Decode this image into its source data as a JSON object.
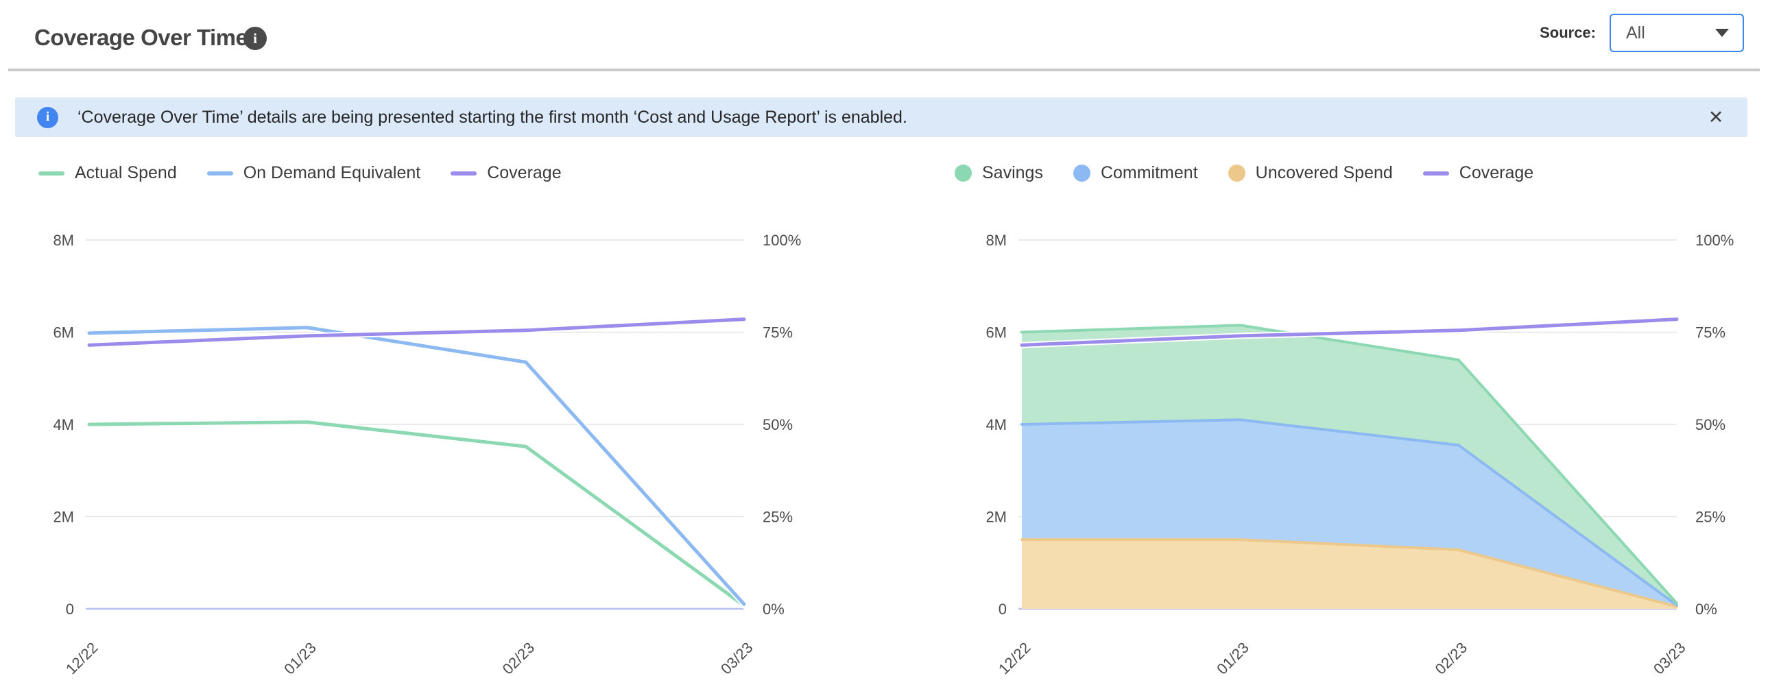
{
  "header": {
    "title": "Coverage Over Time",
    "info_icon": "i",
    "source_label": "Source:",
    "source_value": "All"
  },
  "banner": {
    "info_icon": "i",
    "text": "‘Coverage Over Time’ details are being presented starting the first month ‘Cost and Usage Report’ is enabled.",
    "close_icon": "✕"
  },
  "colors": {
    "accent_blue": "#3c86f0",
    "banner_bg": "#dce9f9",
    "banner_icon_blue": "#4186f0",
    "title_text": "#454545",
    "divider_gray": "#c9c9c9",
    "grid": "#e3e3e3",
    "baseline": "#b7c3ec",
    "axis_text": "#4d4d4d",
    "green_line": "#8cd8b2",
    "green_fill": "#bbe7ce",
    "blue_line": "#8cb9f2",
    "blue_fill": "#b1d2f7",
    "orange_line": "#ecc98a",
    "orange_fill": "#f5ddb0",
    "purple_line": "#9b8ceb"
  },
  "chart_data": [
    {
      "id": "spend-lines-chart",
      "type": "line",
      "title": "",
      "legend_position": "top",
      "grid": true,
      "x_label_rotation": -45,
      "categories": [
        "12/22",
        "01/23",
        "02/23",
        "03/23"
      ],
      "left_axis": {
        "label": "",
        "unit": "M",
        "max": 8,
        "ticks": [
          {
            "value": 8,
            "label": "8M"
          },
          {
            "value": 6,
            "label": "6M"
          },
          {
            "value": 4,
            "label": "4M"
          },
          {
            "value": 2,
            "label": "2M"
          },
          {
            "value": 0,
            "label": "0"
          }
        ]
      },
      "right_axis": {
        "label": "",
        "unit": "%",
        "max": 100,
        "ticks": [
          {
            "value": 100,
            "label": "100%"
          },
          {
            "value": 75,
            "label": "75%"
          },
          {
            "value": 50,
            "label": "50%"
          },
          {
            "value": 25,
            "label": "25%"
          },
          {
            "value": 0,
            "label": "0%"
          }
        ]
      },
      "series": [
        {
          "name": "Actual Spend",
          "role": "line",
          "axis": "left",
          "swatch": "line",
          "color": "#8cd8b2",
          "values": [
            4.0,
            4.05,
            3.52,
            0.07
          ]
        },
        {
          "name": "On Demand Equivalent",
          "role": "line",
          "axis": "left",
          "swatch": "line",
          "color": "#8cb9f2",
          "values": [
            5.98,
            6.1,
            5.35,
            0.1
          ]
        },
        {
          "name": "Coverage",
          "role": "line",
          "axis": "right",
          "swatch": "line",
          "color": "#9b8ceb",
          "values": [
            71.5,
            74,
            75.5,
            78.5
          ]
        }
      ]
    },
    {
      "id": "coverage-stack-chart",
      "type": "area-stacked",
      "title": "",
      "legend_position": "top",
      "grid": true,
      "x_label_rotation": -45,
      "categories": [
        "12/22",
        "01/23",
        "02/23",
        "03/23"
      ],
      "stack_bottom_to_top": [
        "Uncovered Spend",
        "Commitment",
        "Savings"
      ],
      "left_axis": {
        "label": "",
        "unit": "M",
        "max": 8,
        "ticks": [
          {
            "value": 8,
            "label": "8M"
          },
          {
            "value": 6,
            "label": "6M"
          },
          {
            "value": 4,
            "label": "4M"
          },
          {
            "value": 2,
            "label": "2M"
          },
          {
            "value": 0,
            "label": "0"
          }
        ]
      },
      "right_axis": {
        "label": "",
        "unit": "%",
        "max": 100,
        "ticks": [
          {
            "value": 100,
            "label": "100%"
          },
          {
            "value": 75,
            "label": "75%"
          },
          {
            "value": 50,
            "label": "50%"
          },
          {
            "value": 25,
            "label": "25%"
          },
          {
            "value": 0,
            "label": "0%"
          }
        ]
      },
      "series": [
        {
          "name": "Savings",
          "role": "area",
          "axis": "left",
          "swatch": "dot",
          "color": "#8cd8b2",
          "fill": "#bbe7ce",
          "values": [
            2.0,
            2.05,
            1.85,
            0.04
          ]
        },
        {
          "name": "Commitment",
          "role": "area",
          "axis": "left",
          "swatch": "dot",
          "color": "#8cb9f2",
          "fill": "#b1d2f7",
          "values": [
            2.5,
            2.6,
            2.27,
            0.03
          ]
        },
        {
          "name": "Uncovered Spend",
          "role": "area",
          "axis": "left",
          "swatch": "dot",
          "color": "#ecc98a",
          "fill": "#f5ddb0",
          "values": [
            1.5,
            1.5,
            1.28,
            0.05
          ]
        },
        {
          "name": "Coverage",
          "role": "line",
          "axis": "right",
          "swatch": "line",
          "color": "#9b8ceb",
          "values": [
            71.5,
            74,
            75.5,
            78.5
          ]
        }
      ]
    }
  ]
}
